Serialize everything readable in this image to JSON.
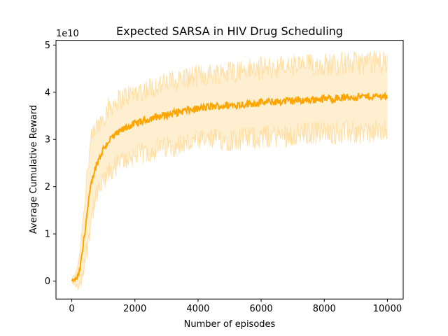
{
  "chart_data": {
    "type": "line",
    "title": "Expected SARSA in HIV Drug Scheduling",
    "xlabel": "Number of episodes",
    "ylabel": "Average Cumulative Reward",
    "y_offset_text": "1e10",
    "y_scale": 10000000000,
    "xlim": [
      -500,
      10500
    ],
    "ylim": [
      -0.38,
      5.1
    ],
    "xticks": [
      0,
      2000,
      4000,
      6000,
      8000,
      10000
    ],
    "xtick_labels": [
      "0",
      "2000",
      "4000",
      "6000",
      "8000",
      "10000"
    ],
    "yticks": [
      0,
      1,
      2,
      3,
      4,
      5
    ],
    "ytick_labels": [
      "0",
      "1",
      "2",
      "3",
      "4",
      "5"
    ],
    "grid": false,
    "legend": "none",
    "colors": {
      "line": "#ffa500",
      "band": "#ffa500",
      "band_opacity": 0.18,
      "band_edge_opacity": 0.28
    },
    "series": [
      {
        "x": [
          0,
          150,
          250,
          350,
          450,
          500,
          600,
          700,
          800,
          1000,
          1200,
          1500,
          1800,
          2000,
          2500,
          3000,
          3500,
          4000,
          4500,
          5000,
          6000,
          7000,
          8000,
          9000,
          10000
        ],
        "mean": [
          0,
          0.05,
          0.2,
          0.7,
          1.25,
          1.5,
          2.0,
          2.3,
          2.5,
          2.8,
          3.0,
          3.15,
          3.28,
          3.33,
          3.45,
          3.52,
          3.6,
          3.65,
          3.7,
          3.72,
          3.78,
          3.82,
          3.86,
          3.9,
          3.92
        ],
        "lower": [
          -0.05,
          -0.1,
          -0.15,
          0.2,
          0.6,
          0.8,
          1.3,
          1.6,
          1.8,
          2.1,
          2.3,
          2.5,
          2.6,
          2.65,
          2.75,
          2.85,
          2.9,
          2.95,
          3.0,
          3.0,
          3.05,
          3.1,
          3.15,
          3.15,
          3.15
        ],
        "upper": [
          0.05,
          0.2,
          0.6,
          1.3,
          2.0,
          2.4,
          2.9,
          3.1,
          3.25,
          3.5,
          3.7,
          3.85,
          3.95,
          4.0,
          4.1,
          4.2,
          4.3,
          4.35,
          4.4,
          4.45,
          4.5,
          4.55,
          4.6,
          4.62,
          4.65
        ]
      }
    ]
  }
}
